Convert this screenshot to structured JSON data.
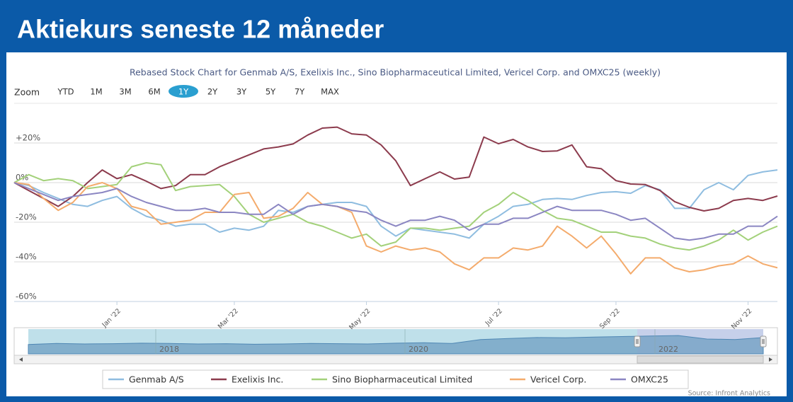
{
  "header": {
    "title": "Aktiekurs seneste 12 måneder"
  },
  "zoom": {
    "label": "Zoom",
    "buttons": [
      "YTD",
      "1M",
      "3M",
      "6M",
      "1Y",
      "2Y",
      "3Y",
      "5Y",
      "7Y",
      "MAX"
    ],
    "selected": 4
  },
  "chart_data": {
    "type": "line",
    "title": "Rebased Stock Chart for Genmab A/S, Exelixis Inc., Sino Biopharmaceutical Limited, Vericel Corp. and OMXC25 (weekly)",
    "categories": [
      null,
      null,
      null,
      null,
      null,
      null,
      null,
      "Jan '22",
      null,
      null,
      null,
      null,
      null,
      null,
      null,
      "Mar '22",
      null,
      null,
      null,
      null,
      null,
      null,
      null,
      null,
      "May '22",
      null,
      null,
      null,
      null,
      null,
      null,
      null,
      null,
      "Jul '22",
      null,
      null,
      null,
      null,
      null,
      null,
      null,
      "Sep '22",
      null,
      null,
      null,
      null,
      null,
      null,
      null,
      null,
      "Nov '22",
      null,
      null
    ],
    "ylim": [
      -60,
      40
    ],
    "yticks": [
      {
        "value": 20,
        "label": "+20%"
      },
      {
        "value": 0,
        "label": "0%"
      },
      {
        "value": -20,
        "label": "-20%"
      },
      {
        "value": -40,
        "label": "-40%"
      },
      {
        "value": -60,
        "label": "-60%"
      }
    ],
    "grid": true,
    "series": [
      {
        "name": "Genmab A/S",
        "color": "#8fbde0",
        "values": [
          0,
          -1.5,
          -5,
          -8,
          -11,
          -12,
          -9,
          -7,
          -13,
          -17,
          -19,
          -22,
          -21,
          -21,
          -25,
          -23,
          -24,
          -22,
          -14,
          -15,
          -12,
          -11,
          -10,
          -10,
          -12,
          -22,
          -27,
          -23,
          -24,
          -25,
          -26,
          -28,
          -21,
          -17,
          -12,
          -11,
          -8.5,
          -8,
          -8.5,
          -6.5,
          -5,
          -4.6,
          -5.4,
          -1.5,
          -3.6,
          -13,
          -13,
          -3.6,
          0,
          -3.6,
          3.6,
          5.4,
          6.4
        ]
      },
      {
        "name": "Exelixis Inc.",
        "color": "#8c3b4d",
        "values": [
          0,
          -4,
          -8,
          -12,
          -7,
          0,
          6.4,
          2,
          4,
          0.7,
          -3,
          -1.5,
          4,
          4,
          8,
          11,
          14,
          17,
          18,
          19.5,
          24,
          27.5,
          28,
          24.6,
          24,
          19,
          11,
          -1.5,
          2,
          5.4,
          1.8,
          2.8,
          23,
          19.6,
          21.8,
          18,
          15.7,
          16,
          19,
          8,
          7,
          1,
          -0.7,
          -1,
          -4,
          -9.6,
          -12.5,
          -14.3,
          -13,
          -9,
          -8,
          -9,
          -6.8
        ]
      },
      {
        "name": "Sino Biopharmaceutical Limited",
        "color": "#a3d17a",
        "values": [
          0,
          4,
          1,
          2,
          1,
          -3,
          -2,
          -1,
          8,
          10,
          9,
          -4,
          -2,
          -1.5,
          -1,
          -7,
          -16,
          -20,
          -18,
          -16,
          -20,
          -22,
          -25,
          -28,
          -26,
          -32,
          -30,
          -23,
          -23,
          -24,
          -23,
          -22,
          -15,
          -11,
          -5,
          -9,
          -14,
          -18,
          -19,
          -22,
          -25,
          -25,
          -27,
          -28,
          -31,
          -33,
          -34,
          -32,
          -29,
          -24,
          -29,
          -25,
          -22
        ]
      },
      {
        "name": "Vericel Corp.",
        "color": "#f4ab6c",
        "values": [
          0,
          -1,
          -8,
          -14,
          -10,
          -2,
          0,
          -3,
          -12,
          -14,
          -21,
          -20,
          -19,
          -15,
          -15,
          -6,
          -5,
          -18,
          -17,
          -13,
          -5,
          -11,
          -12,
          -15,
          -32,
          -35,
          -32,
          -34,
          -33,
          -35,
          -41,
          -44,
          -38,
          -38,
          -33,
          -34,
          -32,
          -22,
          -27,
          -33,
          -27,
          -36,
          -46,
          -38,
          -38,
          -43,
          -45,
          -44,
          -42,
          -41,
          -37,
          -41,
          -43
        ]
      },
      {
        "name": "OMXC25",
        "color": "#8b86c2",
        "values": [
          0,
          -3,
          -6,
          -9,
          -7,
          -6,
          -5,
          -3,
          -7,
          -10,
          -12,
          -14,
          -14,
          -13,
          -15,
          -15,
          -16,
          -16,
          -11,
          -16,
          -12,
          -11,
          -12,
          -14,
          -15,
          -19,
          -22,
          -19,
          -19,
          -17,
          -19,
          -24,
          -21,
          -21,
          -18,
          -18,
          -15,
          -12,
          -14,
          -14,
          -14,
          -16,
          -19,
          -18,
          -23,
          -28,
          -29,
          -28,
          -26,
          -26,
          -22,
          -22,
          -17
        ]
      }
    ]
  },
  "navigator": {
    "labels": [
      "2018",
      "2020",
      "2022"
    ],
    "ylim": [
      0,
      100
    ],
    "values": [
      38,
      42,
      40,
      41,
      43,
      42,
      40,
      41,
      39,
      40,
      42,
      41,
      40,
      43,
      45,
      42,
      58,
      62,
      66,
      65,
      68,
      70,
      72,
      74,
      60,
      58,
      66
    ]
  },
  "source": "Source: Infront Analytics"
}
